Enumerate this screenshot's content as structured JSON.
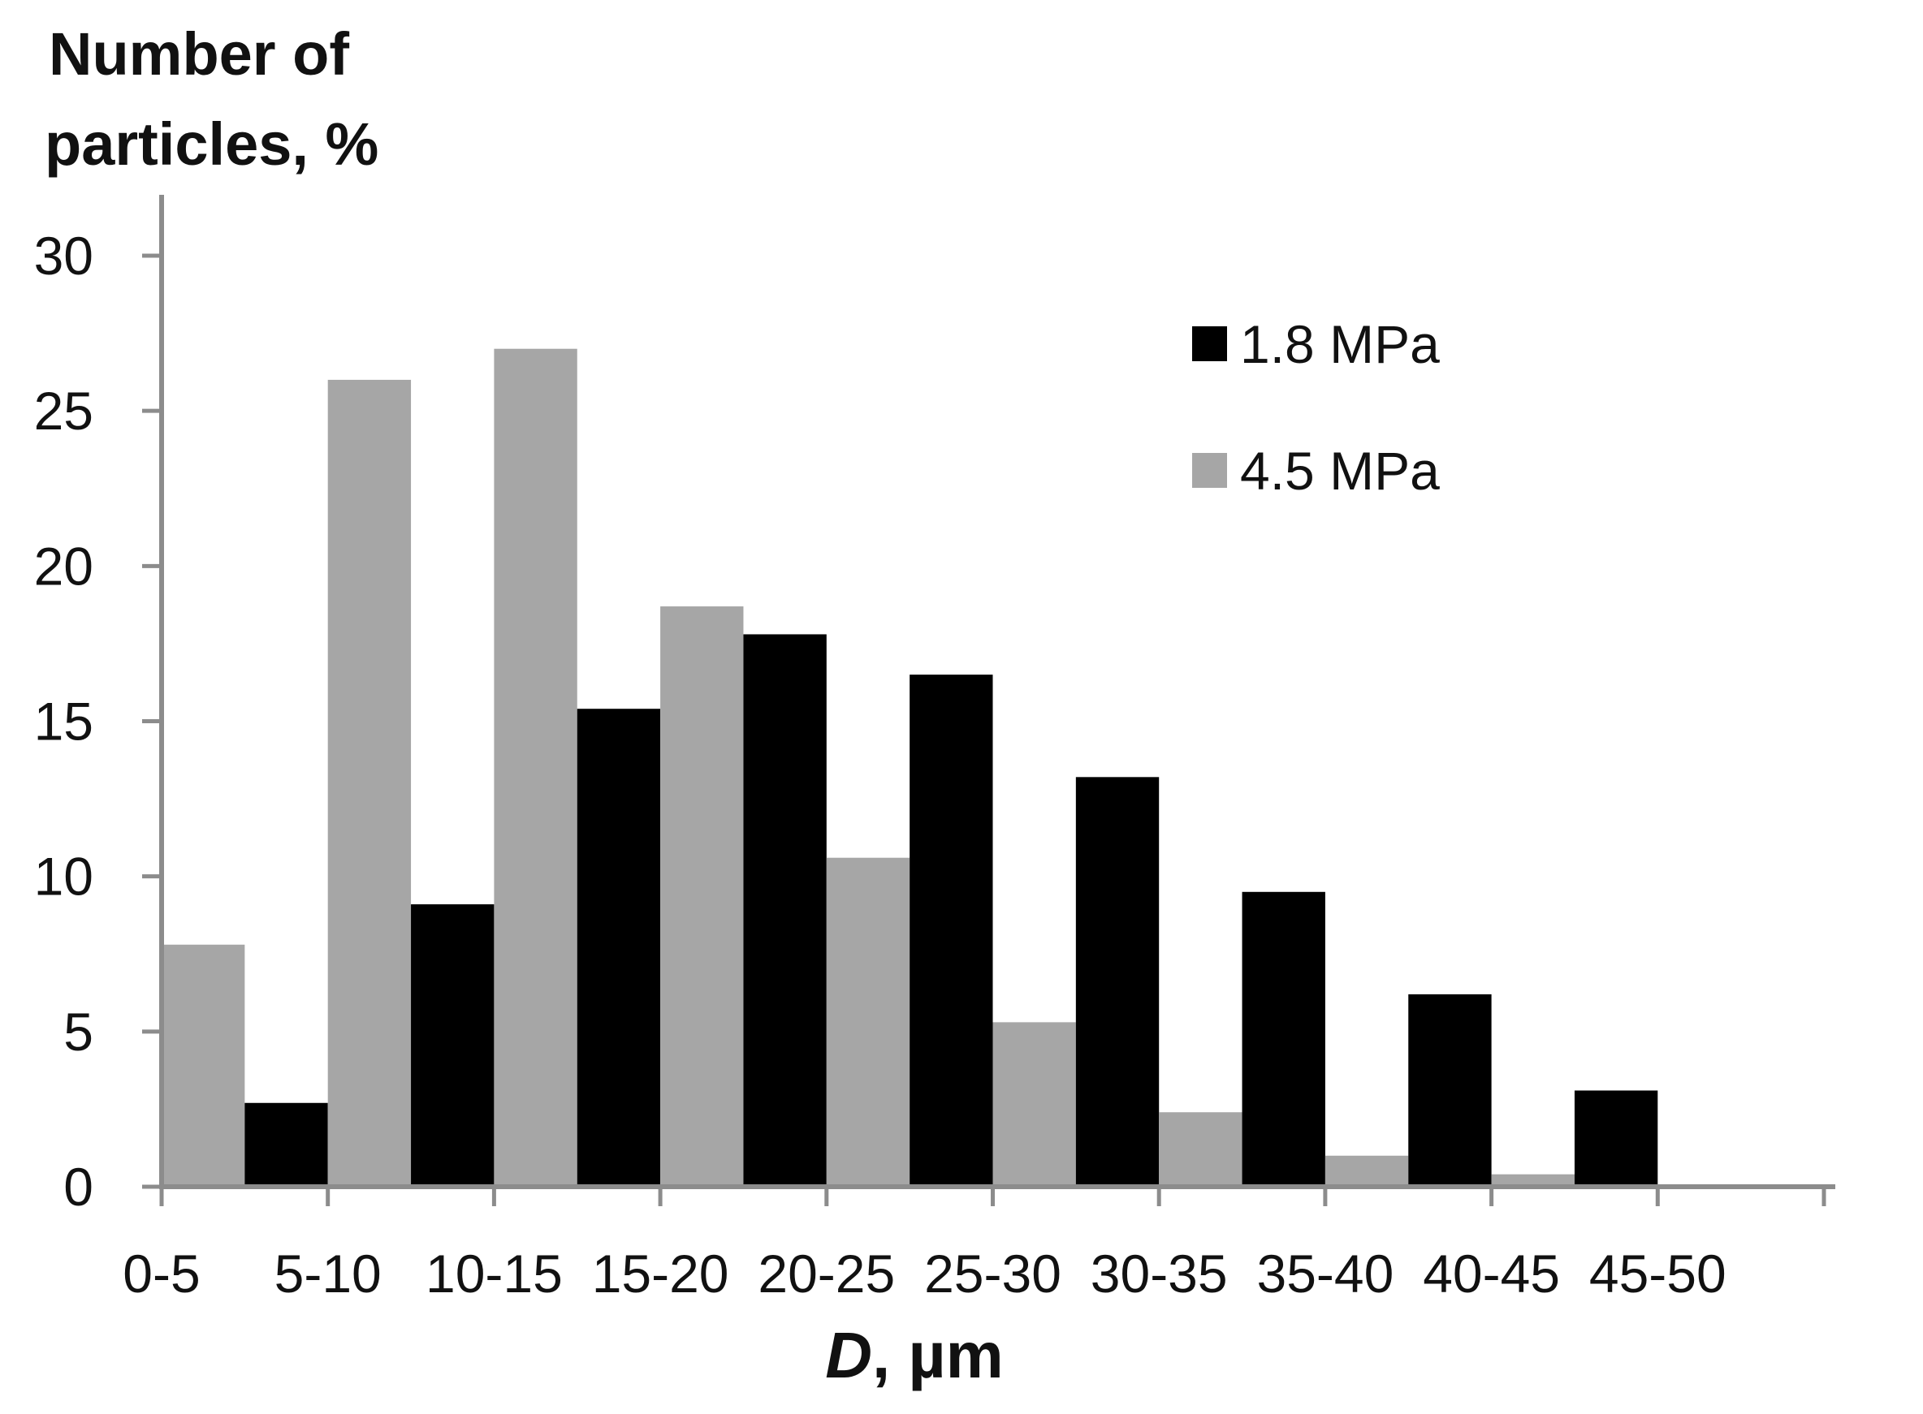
{
  "chart_data": {
    "type": "bar",
    "ylabel_lines": [
      "Number of",
      "particles, %"
    ],
    "xlabel_var": "D",
    "xlabel_unit": ", µm",
    "categories": [
      "0-5",
      "5-10",
      "10-15",
      "15-20",
      "20-25",
      "25-30",
      "30-35",
      "35-40",
      "40-45",
      "45-50"
    ],
    "ylim": [
      0,
      30
    ],
    "yticks": [
      "0",
      "5",
      "10",
      "15",
      "20",
      "25",
      "30"
    ],
    "series": [
      {
        "name": "1.8 MPa",
        "color": "#000000",
        "values": [
          2.7,
          9.1,
          15.4,
          17.8,
          16.5,
          13.2,
          9.5,
          6.2,
          3.1,
          0
        ]
      },
      {
        "name": "4.5 MPa",
        "color": "#a6a6a6",
        "values": [
          7.8,
          26.0,
          27.0,
          18.7,
          10.6,
          5.3,
          2.4,
          1.0,
          0.4,
          0
        ]
      }
    ],
    "bar_order": "4.5 MPa then 1.8 MPa within each bin, bins offset by half a category",
    "grid": false,
    "legend_position": "top-right"
  }
}
